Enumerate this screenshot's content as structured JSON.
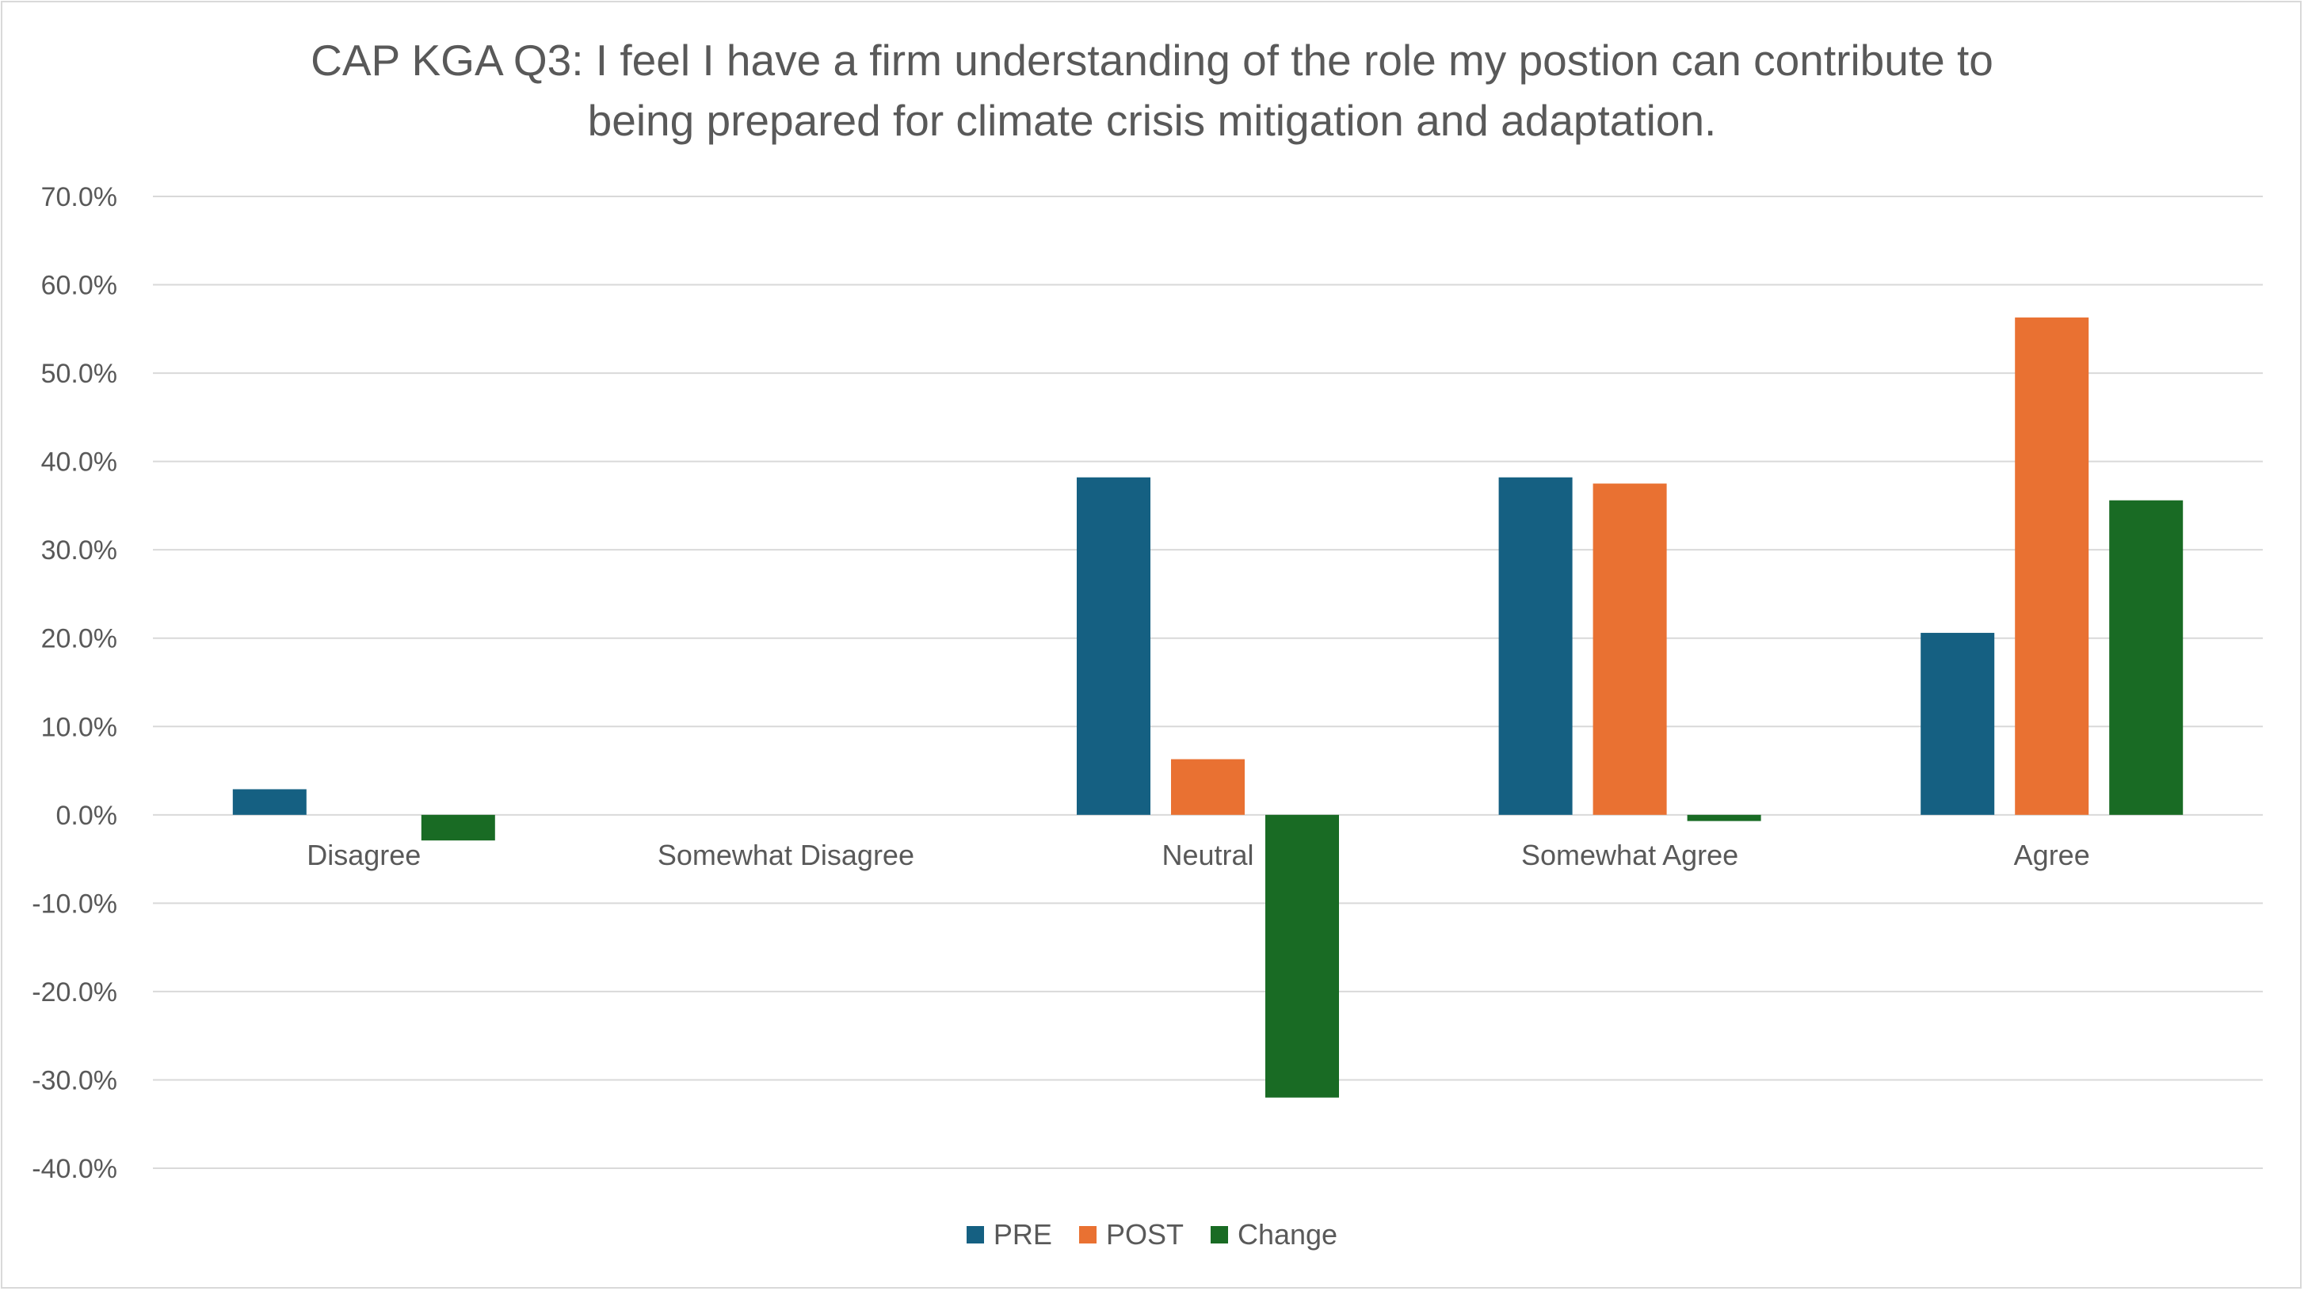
{
  "chart_data": {
    "type": "bar",
    "title_lines": [
      "CAP KGA Q3: I feel I have a firm understanding of the role my postion can contribute to",
      "being prepared for climate crisis mitigation and adaptation."
    ],
    "categories": [
      "Disagree",
      "Somewhat Disagree",
      "Neutral",
      "Somewhat Agree",
      "Agree"
    ],
    "series": [
      {
        "name": "PRE",
        "color": "#156082",
        "values": [
          2.9,
          0.0,
          38.2,
          38.2,
          20.6
        ]
      },
      {
        "name": "POST",
        "color": "#E97132",
        "values": [
          0.0,
          0.0,
          6.3,
          37.5,
          56.3
        ]
      },
      {
        "name": "Change",
        "color": "#196B24",
        "values": [
          -2.9,
          0.0,
          -32.0,
          -0.7,
          35.6
        ]
      }
    ],
    "ylim": [
      -40,
      70
    ],
    "ytick_step": 10,
    "ytick_labels": [
      "70.0%",
      "60.0%",
      "50.0%",
      "40.0%",
      "30.0%",
      "20.0%",
      "10.0%",
      "0.0%",
      "-10.0%",
      "-20.0%",
      "-30.0%",
      "-40.0%"
    ],
    "grid": true,
    "legend_position": "bottom",
    "xlabel": "",
    "ylabel": ""
  }
}
